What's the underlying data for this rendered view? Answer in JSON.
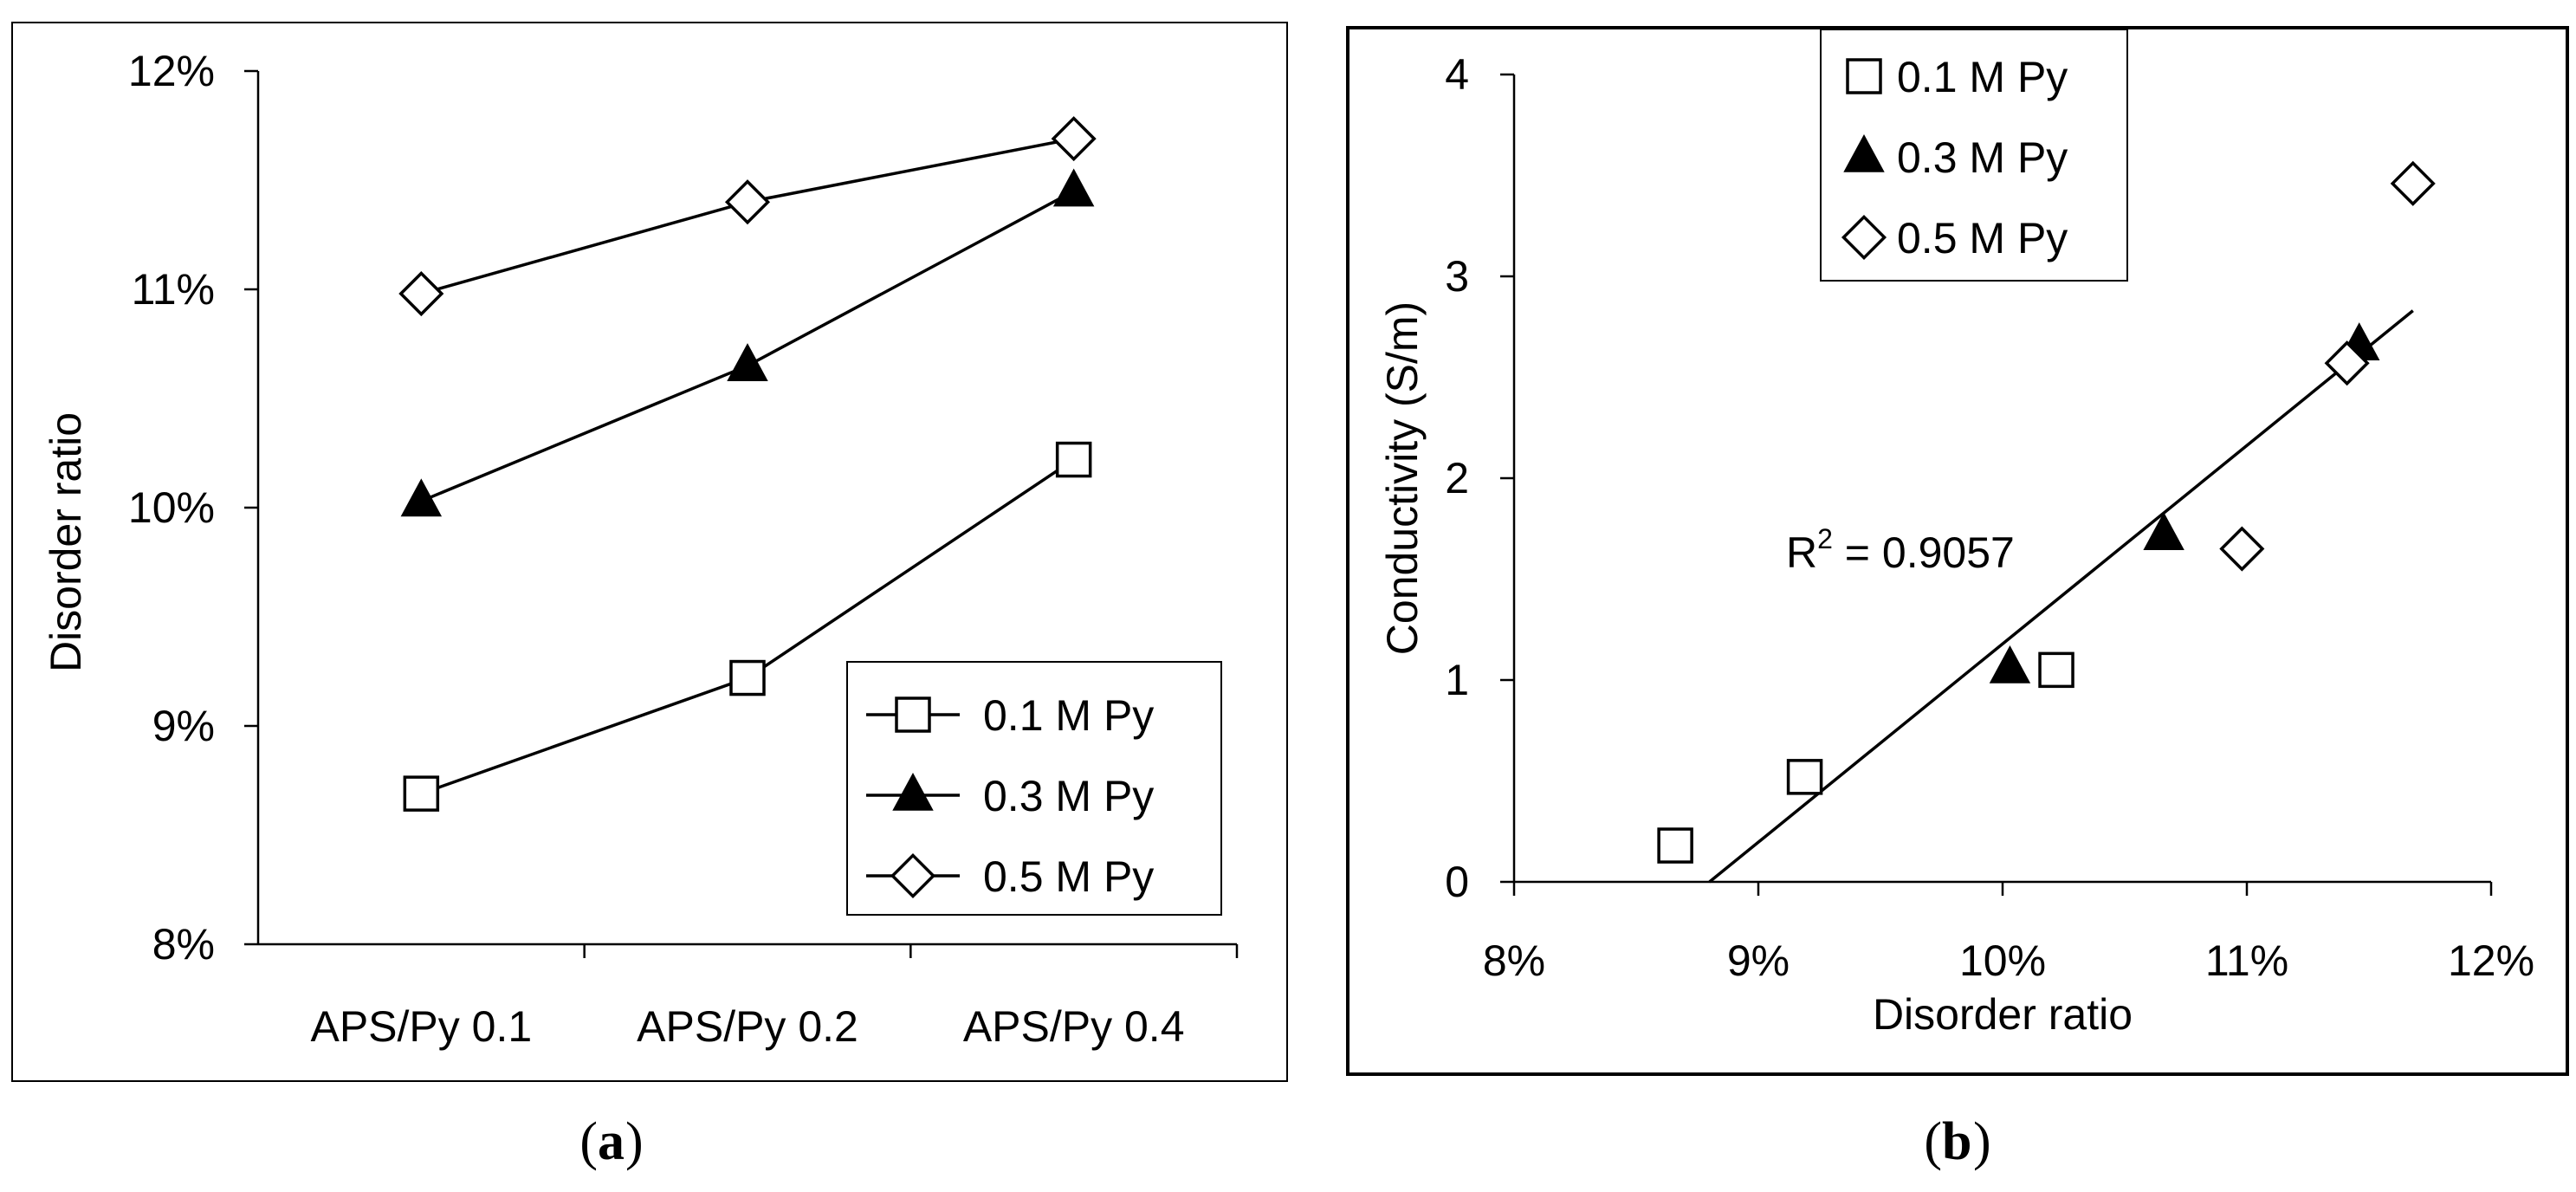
{
  "chart_data": [
    {
      "panel": "(a)",
      "type": "line",
      "categories": [
        "APS/Py 0.1",
        "APS/Py 0.2",
        "APS/Py 0.4"
      ],
      "ylabel": "Disorder ratio",
      "xlabel": "",
      "ylim": [
        0.08,
        0.12
      ],
      "yticks": [
        "8%",
        "9%",
        "10%",
        "11%",
        "12%"
      ],
      "legend_position": "bottom-right",
      "grid": false,
      "series": [
        {
          "name": "0.1 M Py",
          "marker": "open-square",
          "values": [
            0.0869,
            0.0922,
            0.1022
          ]
        },
        {
          "name": "0.3 M Py",
          "marker": "filled-triangle",
          "values": [
            0.1003,
            0.1065,
            0.1145
          ]
        },
        {
          "name": "0.5 M Py",
          "marker": "open-diamond",
          "values": [
            0.1098,
            0.114,
            0.1169
          ]
        }
      ]
    },
    {
      "panel": "(b)",
      "type": "scatter",
      "xlabel": "Disorder ratio",
      "ylabel": "Conductivity (S/m)",
      "xlim": [
        0.08,
        0.12
      ],
      "ylim": [
        0,
        4
      ],
      "xticks": [
        "8%",
        "9%",
        "10%",
        "11%",
        "12%"
      ],
      "yticks": [
        "0",
        "1",
        "2",
        "3",
        "4"
      ],
      "legend_position": "top-left",
      "grid": false,
      "series": [
        {
          "name": "0.1 M Py",
          "marker": "open-square",
          "points": [
            [
              0.0866,
              0.18
            ],
            [
              0.0919,
              0.52
            ],
            [
              0.1022,
              1.05
            ]
          ]
        },
        {
          "name": "0.3 M Py",
          "marker": "filled-triangle",
          "points": [
            [
              0.1003,
              1.06
            ],
            [
              0.1066,
              1.72
            ],
            [
              0.1146,
              2.66
            ]
          ]
        },
        {
          "name": "0.5 M Py",
          "marker": "open-diamond",
          "points": [
            [
              0.1098,
              1.65
            ],
            [
              0.1141,
              2.57
            ],
            [
              0.1168,
              3.46
            ]
          ]
        }
      ],
      "trendline": {
        "x": [
          0.088,
          0.1168
        ],
        "y": [
          0.0,
          2.83
        ]
      },
      "annotation": {
        "base": "R",
        "sup": "2",
        "rest": " = 0.9057"
      }
    }
  ],
  "captions": {
    "a": "a",
    "b": "b"
  }
}
